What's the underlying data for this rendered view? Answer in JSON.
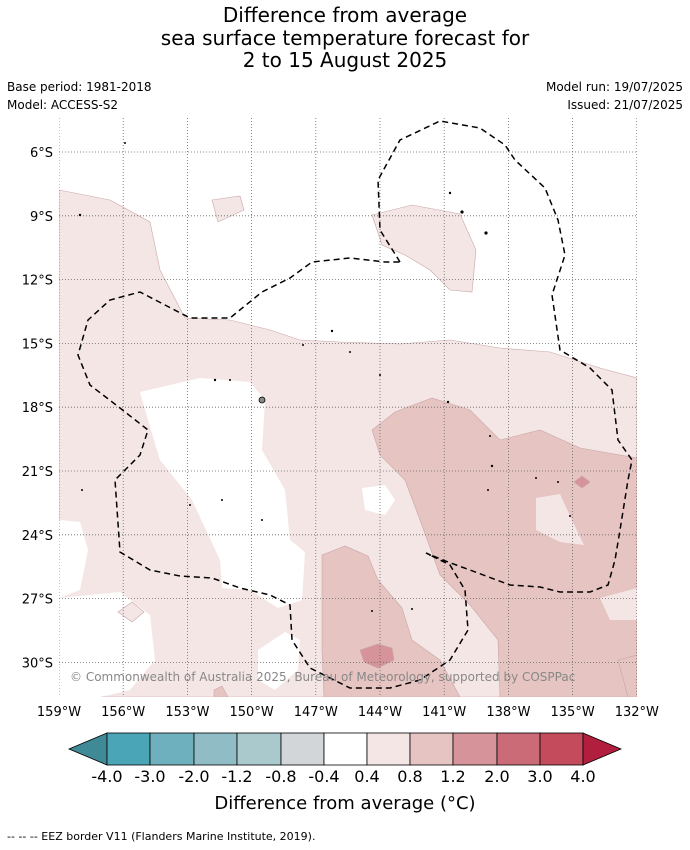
{
  "title": {
    "line1": "Difference from average",
    "line2": "sea surface temperature forecast for",
    "line3": "2 to 15 August 2025"
  },
  "meta": {
    "base_period": "Base period: 1981-2018",
    "model": "Model: ACCESS-S2",
    "model_run": "Model run: 19/07/2025",
    "issued": "Issued: 21/07/2025"
  },
  "map": {
    "lat_labels": [
      "6°S",
      "9°S",
      "12°S",
      "15°S",
      "18°S",
      "21°S",
      "24°S",
      "27°S",
      "30°S"
    ],
    "lon_labels": [
      "159°W",
      "156°W",
      "153°W",
      "150°W",
      "147°W",
      "144°W",
      "141°W",
      "138°W",
      "135°W",
      "132°W"
    ],
    "copyright": "© Commonwealth of Australia 2025, Bureau of Meteorology, supported by COSPPac",
    "colors": {
      "c_04_08": "#f5e6e6",
      "c_08_12": "#e6c4c1",
      "c_12_20": "#d6949a",
      "contour": "#c8a6a6",
      "eez": "#000000"
    }
  },
  "colorbar": {
    "title": "Difference from average (°C)",
    "ticks": [
      "-4.0",
      "-3.0",
      "-2.0",
      "-1.2",
      "-0.8",
      "-0.4",
      "0.4",
      "0.8",
      "1.2",
      "2.0",
      "3.0",
      "4.0"
    ],
    "colors": [
      "#3f8a96",
      "#4aa6b7",
      "#6fb0be",
      "#8fbcc5",
      "#aac9cd",
      "#d3d6d8",
      "#ffffff",
      "#f5e6e6",
      "#e6c4c1",
      "#d6949a",
      "#cc6b78",
      "#c44b5c",
      "#b21f3e"
    ]
  },
  "footnote": "--  --  -- EEZ border V11 (Flanders Marine Institute, 2019)."
}
